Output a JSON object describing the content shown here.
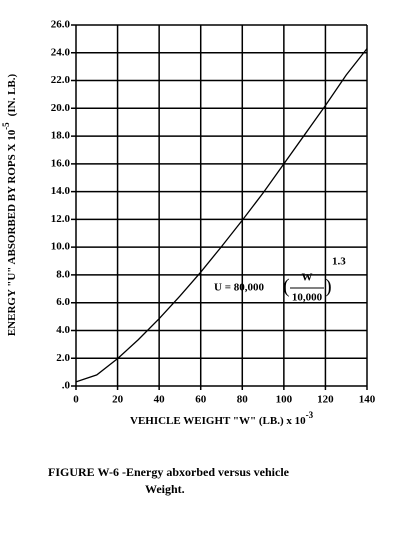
{
  "chart_data": {
    "type": "line",
    "x": [
      0,
      10,
      20,
      30,
      40,
      50,
      60,
      70,
      80,
      90,
      100,
      110,
      120,
      130,
      140
    ],
    "values": [
      0.3,
      0.8,
      1.97,
      3.34,
      4.85,
      6.48,
      8.2,
      10.04,
      11.94,
      13.9,
      16.0,
      18.1,
      20.2,
      22.4,
      24.3
    ],
    "color": "#000000",
    "xlim": [
      0,
      140
    ],
    "xticks": [
      0,
      20,
      40,
      60,
      80,
      100,
      120,
      140
    ],
    "ylim": [
      0,
      26
    ],
    "yticks": [
      {
        "value": 0,
        "label": ".0"
      },
      {
        "value": 2,
        "label": "2.0"
      },
      {
        "value": 4,
        "label": "4.0"
      },
      {
        "value": 6,
        "label": "6.0"
      },
      {
        "value": 8,
        "label": "8.0"
      },
      {
        "value": 10,
        "label": "10.0"
      },
      {
        "value": 12,
        "label": "12.0"
      },
      {
        "value": 14,
        "label": "14.0"
      },
      {
        "value": 16,
        "label": "16.0"
      },
      {
        "value": 18,
        "label": "18.0"
      },
      {
        "value": 20,
        "label": "20.0"
      },
      {
        "value": 22,
        "label": "22.0"
      },
      {
        "value": 24,
        "label": "24.0"
      },
      {
        "value": 26,
        "label": "26.0"
      }
    ],
    "grid": true,
    "xlabel": {
      "text": "VEHICLE WEIGHT  \"W\"  (LB.)  x 10",
      "exponent": "-3"
    },
    "ylabel": {
      "text": "ENERGY  \"U\"  ABSORBED BY ROPS X 10",
      "exponent": "-5",
      "unit": "(IN. LB.)"
    },
    "annotation": {
      "lhs": "U = 80,000",
      "numerator": "W",
      "denominator": "10,000",
      "exponent": "1.3"
    },
    "caption": {
      "line1": "FIGURE W-6 -Energy abxorbed versus vehicle",
      "line2": "Weight."
    }
  }
}
